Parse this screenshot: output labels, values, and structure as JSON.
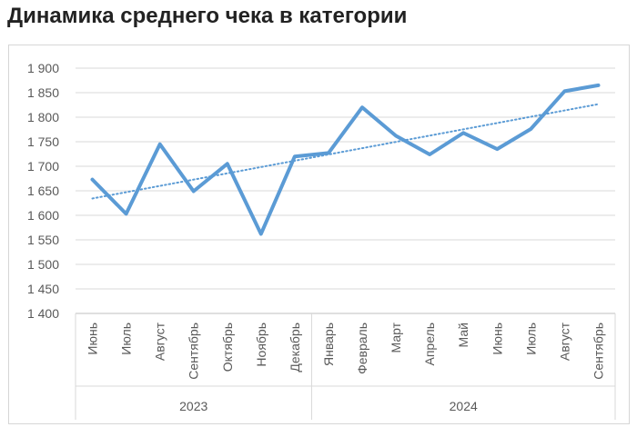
{
  "title": "Динамика среднего чека в категории",
  "chart_data": {
    "type": "line",
    "title": "Динамика среднего чека в категории",
    "xlabel": "",
    "ylabel": "",
    "ylim": [
      1400,
      1900
    ],
    "yticks": [
      1400,
      1450,
      1500,
      1550,
      1600,
      1650,
      1700,
      1750,
      1800,
      1850,
      1900
    ],
    "ytick_labels": [
      "1 400",
      "1 450",
      "1 500",
      "1 550",
      "1 600",
      "1 650",
      "1 700",
      "1 750",
      "1 800",
      "1 850",
      "1 900"
    ],
    "categories": [
      "Июнь",
      "Июль",
      "Август",
      "Сентябрь",
      "Октябрь",
      "Ноябрь",
      "Декабрь",
      "Январь",
      "Февраль",
      "Март",
      "Апрель",
      "Май",
      "Июнь",
      "Июль",
      "Август",
      "Сентябрь"
    ],
    "groups": [
      {
        "label": "2023",
        "count": 7
      },
      {
        "label": "2024",
        "count": 9
      }
    ],
    "series": [
      {
        "values": [
          1673,
          1603,
          1745,
          1649,
          1705,
          1562,
          1720,
          1727,
          1820,
          1762,
          1724,
          1768,
          1735,
          1776,
          1853,
          1865
        ]
      }
    ],
    "trendline": {
      "type": "linear",
      "style": "dotted"
    },
    "grid": "horizontal",
    "legend": "none",
    "colors": {
      "series": "#5b9bd5",
      "trend": "#5b9bd5",
      "grid": "#d9d9d9",
      "axis": "#bfbfbf",
      "text": "#595959"
    }
  }
}
